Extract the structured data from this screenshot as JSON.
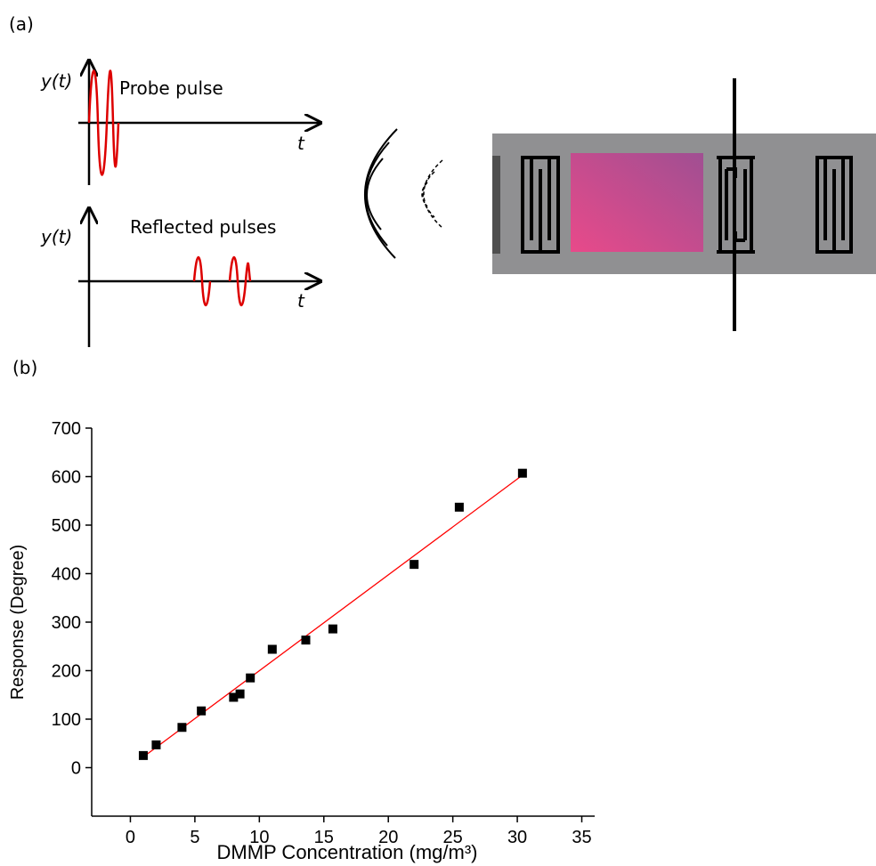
{
  "panel_a": {
    "label": "(a)",
    "probe_axis_label": "y(t)",
    "probe_title": "Probe pulse",
    "probe_time_label": "t",
    "reflected_axis_label": "y(t)",
    "reflected_title": "Reflected pulses",
    "reflected_time_label": "t"
  },
  "panel_b": {
    "label": "(b)"
  },
  "chart_data": {
    "type": "scatter",
    "x_label": "DMMP Concentration (mg/m³)",
    "y_label": "Response (Degree)",
    "x": [
      1.0,
      2.0,
      4.0,
      5.5,
      8.0,
      8.5,
      9.3,
      11.0,
      13.6,
      15.7,
      22.0,
      25.5,
      30.4
    ],
    "values": [
      25,
      47,
      83,
      117,
      145,
      152,
      185,
      244,
      263,
      286,
      419,
      537,
      607
    ],
    "color": "#000000",
    "fit_line": {
      "x": [
        1.0,
        30.4
      ],
      "values": [
        22,
        603
      ],
      "color": "#ff0000"
    },
    "xlim": [
      -3,
      36
    ],
    "xticks": [
      0,
      5,
      10,
      15,
      20,
      25,
      30,
      35
    ],
    "ylim": [
      -100,
      700
    ],
    "yticks": [
      0,
      100,
      200,
      300,
      400,
      500,
      600,
      700
    ]
  }
}
